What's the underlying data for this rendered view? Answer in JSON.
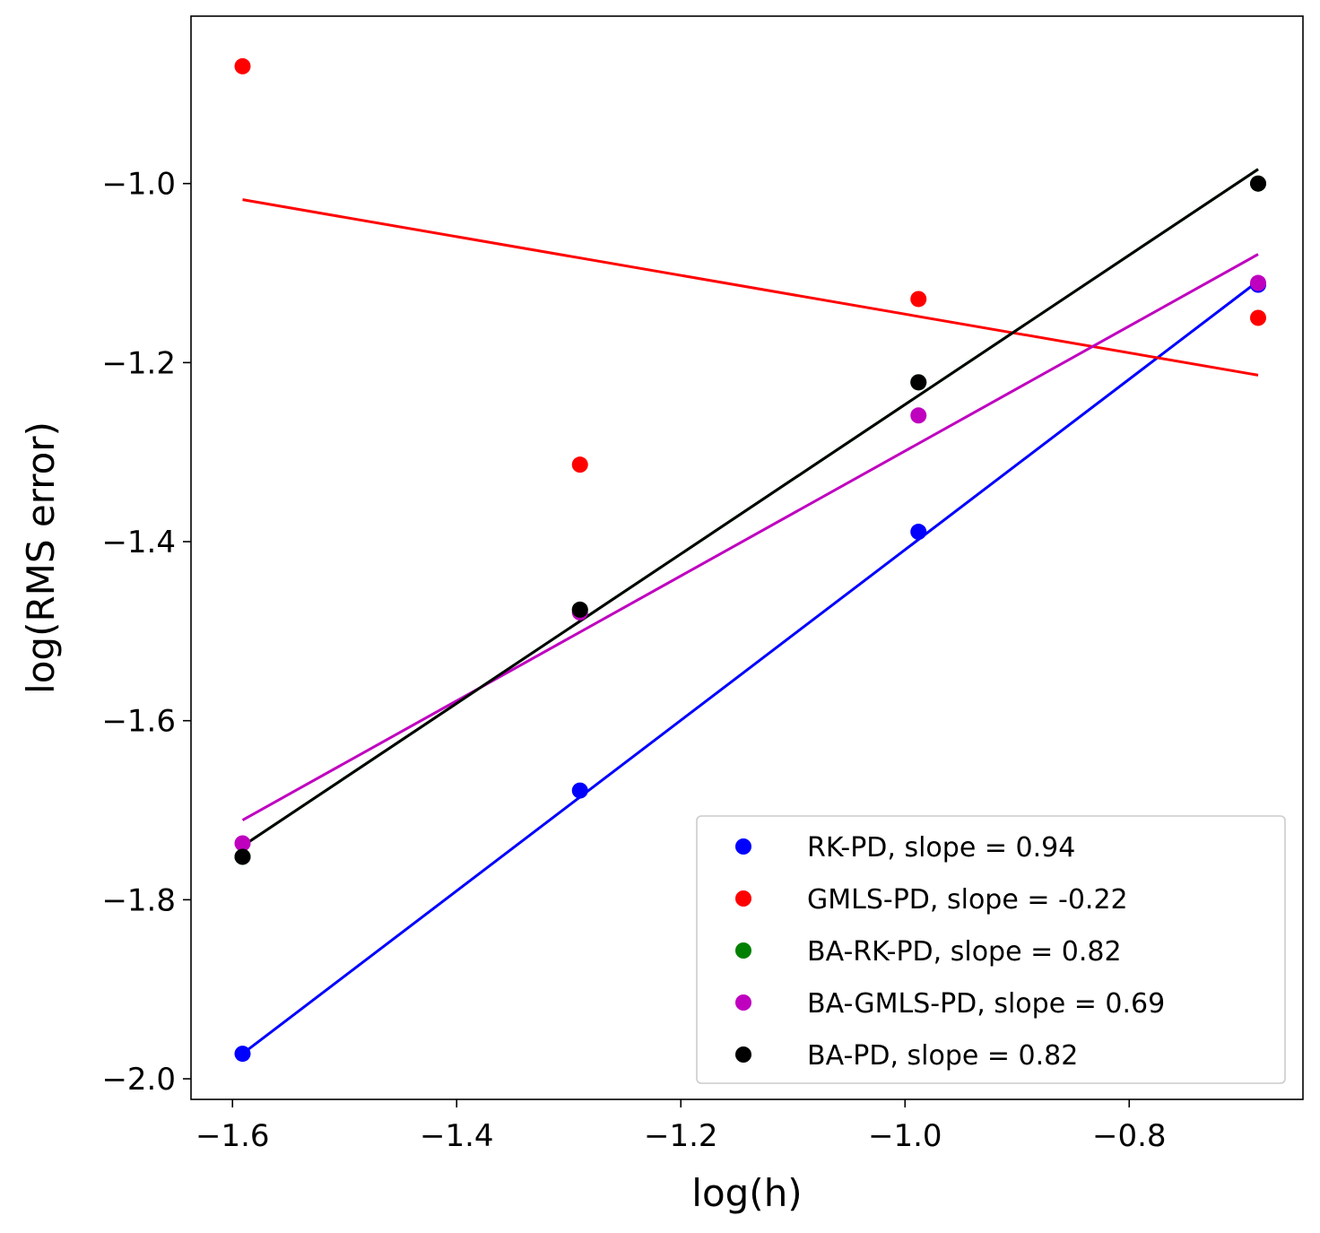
{
  "chart_data": {
    "type": "scatter",
    "title": "",
    "xlabel": "log(h)",
    "ylabel": "log(RMS error)",
    "xlim": [
      -1.637,
      -0.645
    ],
    "ylim": [
      -2.023,
      -0.813
    ],
    "xticks": [
      -1.6,
      -1.4,
      -1.2,
      -1.0,
      -0.8
    ],
    "yticks": [
      -2.0,
      -1.8,
      -1.6,
      -1.4,
      -1.2,
      -1.0
    ],
    "xtick_labels": [
      "−1.6",
      "−1.4",
      "−1.2",
      "−1.0",
      "−0.8"
    ],
    "ytick_labels": [
      "−2.0",
      "−1.8",
      "−1.6",
      "−1.4",
      "−1.2",
      "−1.0"
    ],
    "x": [
      -1.591,
      -1.29,
      -0.988,
      -0.685
    ],
    "legend_position": "lower-right",
    "series": [
      {
        "name": "RK-PD, slope = 0.94",
        "color": "#0000ff",
        "values": [
          -1.972,
          -1.678,
          -1.389,
          -1.113
        ],
        "fit": [
          -1.972,
          -0.685,
          -1.109
        ]
      },
      {
        "name": "GMLS-PD, slope = -0.22",
        "color": "#ff0000",
        "values": [
          -0.869,
          -1.314,
          -1.129,
          -1.15
        ],
        "fit": [
          -1.018,
          -0.685,
          -1.214
        ]
      },
      {
        "name": "BA-RK-PD, slope = 0.82",
        "color": "#008000",
        "values": [
          -1.752,
          -1.476,
          -1.222,
          -1.0
        ],
        "fit": [
          -1.74,
          -0.685,
          -0.984
        ]
      },
      {
        "name": "BA-GMLS-PD, slope = 0.69",
        "color": "#bf00bf",
        "values": [
          -1.737,
          -1.479,
          -1.259,
          -1.111
        ],
        "fit": [
          -1.711,
          -0.685,
          -1.079
        ]
      },
      {
        "name": "BA-PD, slope = 0.82",
        "color": "#000000",
        "values": [
          -1.752,
          -1.476,
          -1.222,
          -1.0
        ],
        "fit": [
          -1.74,
          -0.685,
          -0.984
        ]
      }
    ]
  }
}
